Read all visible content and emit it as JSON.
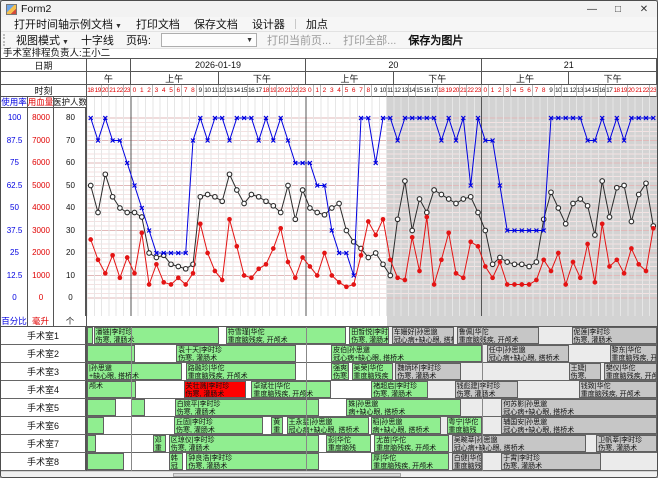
{
  "window": {
    "title": "Form2",
    "minimize": "—",
    "maximize": "□",
    "close": "✕"
  },
  "menu": {
    "items": [
      {
        "label": "打开时间轴示例文档",
        "caret": true
      },
      {
        "label": "打印文档",
        "caret": false
      },
      {
        "label": "保存文档",
        "caret": false
      },
      {
        "label": "设计器",
        "caret": false
      },
      {
        "label": "加点",
        "caret": false,
        "separated": true
      }
    ]
  },
  "toolbar": {
    "view_mode": "视图模式",
    "crosshair": "十字线",
    "page_label": "页码:",
    "page_value": "",
    "print_current": "打印当前页...",
    "print_all": "打印全部...",
    "save_image": "保存为图片"
  },
  "subtitle": "手术室排程负责人:王小二",
  "header": {
    "date_label": "日期",
    "time_label": "时刻",
    "date_cells": [
      {
        "label": "",
        "span": 6
      },
      {
        "label": "2026-01-19",
        "span": 24
      },
      {
        "label": "20",
        "span": 24
      },
      {
        "label": "21",
        "span": 24
      }
    ],
    "ampm_cells": [
      {
        "label": "午",
        "span": 6
      },
      {
        "label": "上午",
        "span": 12
      },
      {
        "label": "下午",
        "span": 12
      },
      {
        "label": "上午",
        "span": 12
      },
      {
        "label": "下午",
        "span": 12
      },
      {
        "label": "上午",
        "span": 12
      },
      {
        "label": "下午",
        "span": 12
      }
    ]
  },
  "axes": [
    {
      "name": "使用率",
      "unit": "百分比",
      "color": "#0000e0",
      "ticks": [
        100,
        87.5,
        75,
        62.5,
        50,
        37.5,
        25,
        12.5,
        0
      ]
    },
    {
      "name": "用血量",
      "unit": "毫升",
      "color": "#e00000",
      "ticks": [
        8000,
        7000,
        6000,
        5000,
        4000,
        3000,
        2000,
        1000,
        0
      ]
    },
    {
      "name": "医护人数",
      "unit": "个",
      "color": "#111111",
      "ticks": [
        80,
        70,
        60,
        50,
        40,
        30,
        20,
        10,
        0
      ]
    }
  ],
  "chart_data": {
    "type": "line",
    "title": "",
    "xlabel": "时刻",
    "grid": true,
    "now_divider_hour_index": 41,
    "past_bg": "#ffffff",
    "future_bg": "#d3d3d3",
    "hours": [
      18,
      19,
      20,
      21,
      22,
      23,
      0,
      1,
      2,
      3,
      4,
      5,
      6,
      7,
      8,
      9,
      10,
      11,
      12,
      13,
      14,
      15,
      16,
      17,
      18,
      19,
      20,
      21,
      22,
      23,
      0,
      1,
      2,
      3,
      4,
      5,
      6,
      7,
      8,
      9,
      10,
      11,
      12,
      13,
      14,
      15,
      16,
      17,
      18,
      19,
      20,
      21,
      22,
      23,
      0,
      1,
      2,
      3,
      4,
      5,
      6,
      7,
      8,
      9,
      10,
      11,
      12,
      13,
      14,
      15,
      16,
      17,
      18,
      19,
      20,
      21,
      22,
      23
    ],
    "off_hours_red_rule": "hour<=8 or hour>=18 shown red",
    "series": [
      {
        "name": "使用率",
        "unit": "百分比",
        "color": "#0000e0",
        "marker": "x",
        "axis_max": 100,
        "values": [
          100,
          87.5,
          100,
          87.5,
          87.5,
          75,
          62.5,
          50,
          37.5,
          25,
          25,
          25,
          25,
          25,
          87.5,
          100,
          87.5,
          100,
          100,
          87.5,
          100,
          100,
          100,
          87.5,
          100,
          87.5,
          100,
          87.5,
          75,
          75,
          75,
          62.5,
          62.5,
          37.5,
          25,
          25,
          12.5,
          100,
          100,
          75,
          100,
          100,
          87.5,
          100,
          100,
          100,
          100,
          100,
          87.5,
          100,
          87.5,
          100,
          62.5,
          100,
          87.5,
          87.5,
          62.5,
          37.5,
          37.5,
          37.5,
          37.5,
          37.5,
          37.5,
          100,
          100,
          100,
          100,
          100,
          87.5,
          87.5,
          100,
          87.5,
          100,
          87.5,
          100,
          100,
          100,
          100
        ]
      },
      {
        "name": "用血量",
        "unit": "毫升",
        "color": "#e41414",
        "marker": "dot",
        "axis_max": 8000,
        "values": [
          2600,
          1700,
          1100,
          1900,
          900,
          1800,
          1100,
          2900,
          600,
          1500,
          700,
          600,
          900,
          600,
          1100,
          3300,
          2000,
          1200,
          800,
          3500,
          2300,
          1000,
          900,
          1300,
          1500,
          2200,
          3100,
          1600,
          900,
          1800,
          1400,
          1000,
          2000,
          1000,
          700,
          500,
          600,
          1900,
          3400,
          2800,
          3500,
          1700,
          900,
          800,
          2700,
          1200,
          3600,
          600,
          1700,
          2900,
          1100,
          900,
          2500,
          2300,
          1400,
          900,
          1600,
          600,
          600,
          600,
          600,
          800,
          1700,
          1200,
          2000,
          600,
          1600,
          900,
          2400,
          700,
          3300,
          1400,
          1700,
          1100,
          2200,
          1500,
          1200,
          3100
        ]
      },
      {
        "name": "医护人数",
        "unit": "个",
        "color": "#2b2b2b",
        "marker": "circle",
        "axis_max": 80,
        "values": [
          50,
          38,
          55,
          45,
          40,
          38,
          38,
          36,
          20,
          18,
          19,
          15,
          14,
          13,
          15,
          45,
          46,
          45,
          43,
          55,
          48,
          42,
          46,
          45,
          43,
          41,
          38,
          50,
          35,
          48,
          40,
          38,
          37,
          40,
          42,
          30,
          25,
          22,
          18,
          20,
          15,
          10,
          35,
          52,
          30,
          44,
          38,
          48,
          46,
          44,
          42,
          44,
          45,
          38,
          30,
          15,
          18,
          16,
          15,
          15,
          14,
          16,
          35,
          47,
          40,
          33,
          42,
          44,
          41,
          28,
          52,
          36,
          49,
          50,
          34,
          46,
          51,
          32
        ]
      }
    ]
  },
  "block_colors": {
    "g": "#90ee90",
    "r": "#ff0000",
    "s": "#c6c6c6"
  },
  "rooms": [
    {
      "label": "手术室1",
      "blocks": [
        {
          "s": 0,
          "e": 0.8,
          "c": "g",
          "l": [
            "",
            ""
          ]
        },
        {
          "s": 0.9,
          "e": 18.1,
          "c": "g",
          "l": [
            "潘链|李时珍",
            "伤寒, 灌肠术"
          ]
        },
        {
          "s": 19,
          "e": 35.5,
          "c": "g",
          "l": [
            "符雪瑾|华佗",
            "重度脑残疾, 开颅术"
          ]
        },
        {
          "s": 35.9,
          "e": 41.4,
          "c": "g",
          "l": [
            "田晳悦|李时珍",
            "伤寒, 灌肠术"
          ]
        },
        {
          "s": 41.7,
          "e": 50.2,
          "c": "s",
          "l": [
            "车姗好|孙思邈",
            "冠心病+缺心眼, 搭桥术"
          ]
        },
        {
          "s": 50.6,
          "e": 61.8,
          "c": "s",
          "l": [
            "鲁佩|华佗",
            "重度脑残疾, 开颅术"
          ]
        },
        {
          "s": 66.3,
          "e": 78,
          "c": "s",
          "l": [
            "伲莲|李时珍",
            "伤寒, 灌肠术"
          ]
        }
      ]
    },
    {
      "label": "手术室2",
      "blocks": [
        {
          "s": 0,
          "e": 6.5,
          "c": "g",
          "l": [
            "",
            ""
          ]
        },
        {
          "s": 12.2,
          "e": 28.6,
          "c": "g",
          "l": [
            "袁十天|李时珍",
            "伤寒, 灌肠术"
          ]
        },
        {
          "s": 33.4,
          "e": 54,
          "c": "g",
          "l": [
            "皮伯|孙思邈",
            "冠心病+缺心眼, 搭桥术"
          ]
        },
        {
          "s": 54.7,
          "e": 66,
          "c": "s",
          "l": [
            "任中|孙思邈",
            "冠心病+缺心眼, 搭桥术"
          ]
        },
        {
          "s": 71.5,
          "e": 78,
          "c": "s",
          "l": [
            "黎东|华佗",
            "重度脑残疾, 开颅术"
          ]
        }
      ]
    },
    {
      "label": "手术室3",
      "blocks": [
        {
          "s": 0,
          "e": 13,
          "c": "g",
          "l": [
            "|孙思邈",
            "+缺心眼, 搭桥术"
          ]
        },
        {
          "s": 13.5,
          "e": 28.6,
          "c": "g",
          "l": [
            "路融珍|华佗",
            "重度脑残疾, 开颅术"
          ]
        },
        {
          "s": 33.4,
          "e": 35.9,
          "c": "g",
          "l": [
            "强爽|李",
            "伤寒,"
          ]
        },
        {
          "s": 36.2,
          "e": 41.9,
          "c": "g",
          "l": [
            "吴荣|华佗",
            "重度脑残疾"
          ]
        },
        {
          "s": 42.2,
          "e": 51.2,
          "c": "s",
          "l": [
            "魏炳环|李时珍",
            "伤寒, 灌肠术"
          ]
        },
        {
          "s": 65.9,
          "e": 70.4,
          "c": "s",
          "l": [
            "王婕|",
            "伤寒,"
          ]
        },
        {
          "s": 70.7,
          "e": 78,
          "c": "s",
          "l": [
            "樊仪|华佗",
            "重度脑残疾, 开颅术"
          ]
        }
      ]
    },
    {
      "label": "手术室4",
      "blocks": [
        {
          "s": 0,
          "e": 6.7,
          "c": "g",
          "l": [
            "颅术",
            ""
          ]
        },
        {
          "s": 13.2,
          "e": 21.8,
          "c": "r",
          "l": [
            "关壮溅|李时珍",
            "伤寒, 灌肠术"
          ]
        },
        {
          "s": 22.5,
          "e": 33.4,
          "c": "g",
          "l": [
            "卓斌壮|华佗",
            "重度脑残疾, 开颅术"
          ]
        },
        {
          "s": 38.9,
          "e": 46.7,
          "c": "g",
          "l": [
            "褚超启|李时珍",
            "伤寒, 灌肠术"
          ]
        },
        {
          "s": 50.3,
          "e": 59,
          "c": "s",
          "l": [
            "钱彪建|李时珍",
            "伤寒, 灌肠术"
          ]
        },
        {
          "s": 67.3,
          "e": 78,
          "c": "s",
          "l": [
            "钱致|华佗",
            "重度脑残疾, 开颅术"
          ]
        }
      ]
    },
    {
      "label": "手术室5",
      "blocks": [
        {
          "s": 0,
          "e": 4,
          "c": "g",
          "l": [
            "",
            ""
          ]
        },
        {
          "s": 6,
          "e": 8,
          "c": "g",
          "l": [
            "",
            ""
          ]
        },
        {
          "s": 12,
          "e": 31.8,
          "c": "g",
          "l": [
            "白婉平|李时珍",
            "伤寒, 灌肠术"
          ]
        },
        {
          "s": 35.5,
          "e": 51.2,
          "c": "g",
          "l": [
            "姝|孙思邈",
            "病+缺心眼, 搭桥术"
          ]
        },
        {
          "s": 56.7,
          "e": 78,
          "c": "s",
          "l": [
            "何苏影|孙思邈",
            "冠心病+缺心眼, 搭桥术"
          ]
        }
      ]
    },
    {
      "label": "手术室6",
      "blocks": [
        {
          "s": 0,
          "e": 2.3,
          "c": "g",
          "l": [
            "",
            ""
          ]
        },
        {
          "s": 11.9,
          "e": 24.1,
          "c": "g",
          "l": [
            "丘固|李时珍",
            "伤寒, 灌肠术"
          ]
        },
        {
          "s": 25.2,
          "e": 26.8,
          "c": "g",
          "l": [
            "黄",
            "重"
          ]
        },
        {
          "s": 27.3,
          "e": 38.6,
          "c": "g",
          "l": [
            "王永星|孙思邈",
            "冠心病+缺心眼, 搭桥术"
          ]
        },
        {
          "s": 38.8,
          "e": 48.5,
          "c": "g",
          "l": [
            "稻|孙思邈",
            "病+缺心眼, 搭桥术"
          ]
        },
        {
          "s": 49.2,
          "e": 54,
          "c": "g",
          "l": [
            "粤宁|华佗",
            "重度脑残"
          ]
        },
        {
          "s": 56.7,
          "e": 78,
          "c": "s",
          "l": [
            "辅国安|孙思邈",
            "冠心病+缺心眼, 搭桥术"
          ]
        }
      ]
    },
    {
      "label": "手术室7",
      "blocks": [
        {
          "s": 0,
          "e": 1.2,
          "c": "g",
          "l": [
            "",
            ""
          ]
        },
        {
          "s": 9,
          "e": 10.8,
          "c": "g",
          "l": [
            "邓",
            "重"
          ]
        },
        {
          "s": 11.2,
          "e": 31.8,
          "c": "g",
          "l": [
            "区琼仪|李时珍",
            "伤寒, 灌肠术"
          ]
        },
        {
          "s": 32.7,
          "e": 38.8,
          "c": "g",
          "l": [
            "彭|华佗",
            "重度脑残"
          ]
        },
        {
          "s": 39.3,
          "e": 49.5,
          "c": "g",
          "l": [
            "尤苗|华佗",
            "重度脑残疾, 开颅术"
          ]
        },
        {
          "s": 49.9,
          "e": 68.3,
          "c": "s",
          "l": [
            "吴畹莘|孙思邈",
            "冠心病+缺心眼, 搭桥术"
          ]
        },
        {
          "s": 69.7,
          "e": 78,
          "c": "s",
          "l": [
            "卫帆莘|李时珍",
            "伤寒, 灌肠术"
          ]
        }
      ]
    },
    {
      "label": "手术室8",
      "blocks": [
        {
          "s": 0,
          "e": 5,
          "c": "g",
          "l": [
            "",
            ""
          ]
        },
        {
          "s": 11.2,
          "e": 13.2,
          "c": "g",
          "l": [
            "韩",
            "冠"
          ]
        },
        {
          "s": 13.6,
          "e": 31.8,
          "c": "g",
          "l": [
            "钟良浩|李时珍",
            "伤寒, 灌肠术"
          ]
        },
        {
          "s": 38.9,
          "e": 49.5,
          "c": "g",
          "l": [
            "厚|华佗",
            "重度脑残疾, 开颅术"
          ]
        },
        {
          "s": 49.9,
          "e": 54,
          "c": "s",
          "l": [
            "白健|华佗",
            "重度脑残"
          ]
        },
        {
          "s": 56.7,
          "e": 70.4,
          "c": "s",
          "l": [
            "于霄|李时珍",
            "伤寒, 灌肠术"
          ]
        }
      ]
    }
  ]
}
